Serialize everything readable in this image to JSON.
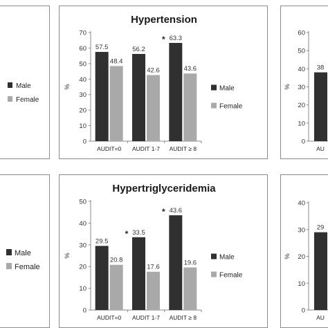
{
  "chart_data": [
    {
      "panel": "top-center",
      "type": "bar",
      "title": "Hypertension",
      "ylabel": "%",
      "ylim": [
        0,
        70
      ],
      "yticks": [
        "0",
        "10",
        "20",
        "30",
        "40",
        "50",
        "60",
        "70"
      ],
      "categories": [
        "AUDIT=0",
        "AUDIT 1-7",
        "AUDIT ≥ 8"
      ],
      "series": [
        {
          "name": "Male",
          "color": "#303030",
          "values": [
            57.5,
            56.2,
            63.3
          ],
          "labels": [
            "57.5",
            "56.2",
            "63.3"
          ]
        },
        {
          "name": "Female",
          "color": "#a9a9a9",
          "values": [
            48.4,
            42.6,
            43.6
          ],
          "labels": [
            "48.4",
            "42.6",
            "43.6"
          ]
        }
      ],
      "significance": [
        "",
        "",
        "*"
      ],
      "legend": "right",
      "grid": false
    },
    {
      "panel": "bottom-center",
      "type": "bar",
      "title": "Hypertriglyceridemia",
      "ylabel": "%",
      "ylim": [
        0,
        50
      ],
      "yticks": [
        "0",
        "10",
        "20",
        "30",
        "40",
        "50"
      ],
      "categories": [
        "AUDIT=0",
        "AUDIT 1-7",
        "AUDIT ≥ 8"
      ],
      "series": [
        {
          "name": "Male",
          "color": "#303030",
          "values": [
            29.5,
            33.5,
            43.6
          ],
          "labels": [
            "29.5",
            "33.5",
            "43.6"
          ]
        },
        {
          "name": "Female",
          "color": "#a9a9a9",
          "values": [
            20.8,
            17.6,
            19.6
          ],
          "labels": [
            "20.8",
            "17.6",
            "19.6"
          ]
        }
      ],
      "significance": [
        "",
        "*",
        "*"
      ],
      "legend": "right",
      "grid": false
    },
    {
      "panel": "top-left-partial",
      "legend": [
        "Male",
        "Female"
      ]
    },
    {
      "panel": "bottom-left-partial",
      "legend": [
        "Male",
        "Female"
      ]
    },
    {
      "panel": "top-right-partial",
      "type": "bar",
      "ylabel": "%",
      "ylim": [
        0,
        60
      ],
      "yticks": [
        "0",
        "10",
        "20",
        "30",
        "40",
        "50",
        "60"
      ],
      "categories": [
        "AU"
      ],
      "series": [
        {
          "name": "Male",
          "color": "#303030",
          "values": [
            38.0
          ],
          "labels": [
            "38"
          ]
        }
      ]
    },
    {
      "panel": "bottom-right-partial",
      "type": "bar",
      "ylabel": "%",
      "ylim": [
        0,
        40
      ],
      "yticks": [
        "0",
        "10",
        "20",
        "30",
        "40"
      ],
      "categories": [
        "AU"
      ],
      "series": [
        {
          "name": "Male",
          "color": "#303030",
          "values": [
            29.0
          ],
          "labels": [
            "29"
          ]
        }
      ]
    }
  ],
  "colors": {
    "male": "#303030",
    "female": "#a9a9a9",
    "border": "#8a8a8a"
  }
}
